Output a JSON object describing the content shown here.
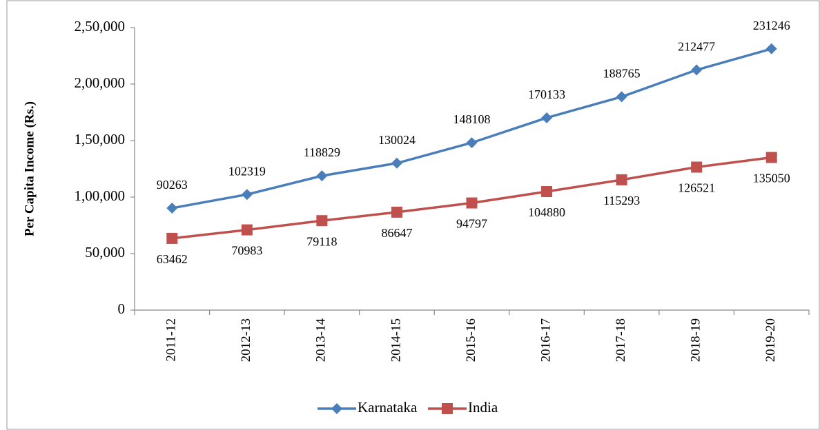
{
  "chart_data": {
    "type": "line",
    "ylabel": "Per Capita Income (Rs.)",
    "categories": [
      "2011-12",
      "2012-13",
      "2013-14",
      "2014-15",
      "2015-16",
      "2016-17",
      "2017-18",
      "2018-19",
      "2019-20"
    ],
    "series": [
      {
        "name": "Karnataka",
        "color": "#4a7ebb",
        "marker": "diamond",
        "values": [
          90263,
          102319,
          118829,
          130024,
          148108,
          170133,
          188765,
          212477,
          231246
        ]
      },
      {
        "name": "India",
        "color": "#c0504d",
        "marker": "square",
        "values": [
          63462,
          70983,
          79118,
          86647,
          94797,
          104880,
          115293,
          126521,
          135050
        ]
      }
    ],
    "ylim": [
      0,
      250000
    ],
    "yticks": [
      0,
      {
        "value": 50000,
        "label": "50,000"
      },
      {
        "value": 100000,
        "label": "1,00,000"
      },
      {
        "value": 150000,
        "label": "1,50,000"
      },
      {
        "value": 200000,
        "label": "2,00,000"
      },
      {
        "value": 250000,
        "label": "2,50,000"
      }
    ],
    "legend": "bottom"
  }
}
